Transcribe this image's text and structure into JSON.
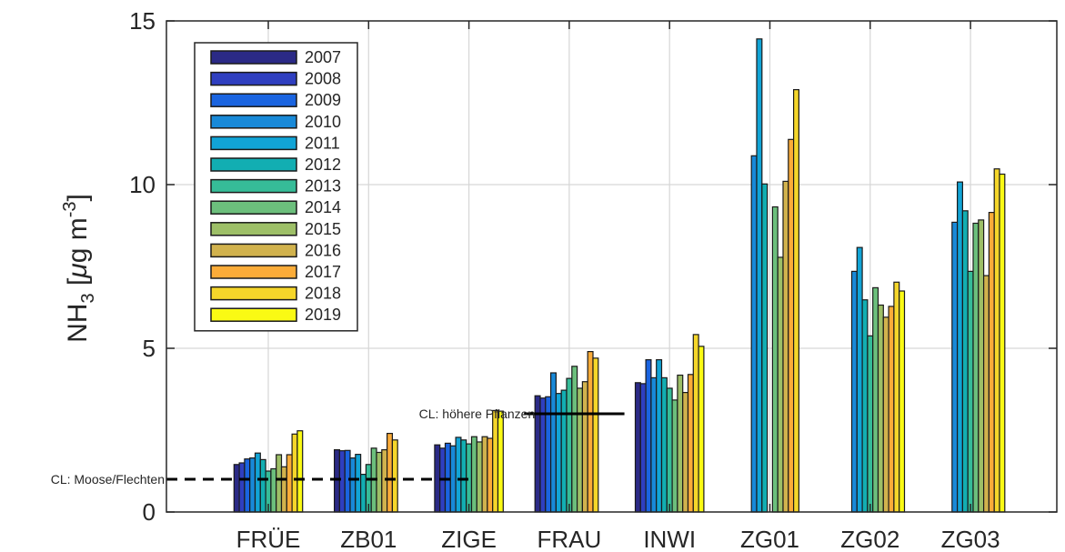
{
  "chart_data": {
    "type": "bar",
    "categories": [
      "FRÜE",
      "ZB01",
      "ZIGE",
      "FRAU",
      "INWI",
      "ZG01",
      "ZG02",
      "ZG03"
    ],
    "ylabel_main": "NH",
    "ylabel_sub": "3",
    "ylabel_unit_prefix": " [",
    "ylabel_mu": "μ",
    "ylabel_unit_mid": "g m",
    "ylabel_sup": "-3",
    "ylabel_unit_suffix": "]",
    "ylim": [
      0,
      15
    ],
    "yticks": [
      0,
      5,
      10,
      15
    ],
    "grid": true,
    "legend_position": "top-left",
    "series": [
      {
        "name": "2007",
        "color": "#2b2a86",
        "values": [
          1.45,
          1.9,
          2.05,
          3.55,
          3.95,
          null,
          null,
          null
        ]
      },
      {
        "name": "2008",
        "color": "#2f3fc0",
        "values": [
          1.5,
          1.87,
          1.95,
          3.48,
          3.92,
          null,
          null,
          null
        ]
      },
      {
        "name": "2009",
        "color": "#1a64e0",
        "values": [
          1.62,
          1.88,
          2.1,
          3.52,
          4.65,
          null,
          null,
          null
        ]
      },
      {
        "name": "2010",
        "color": "#1889d8",
        "values": [
          1.65,
          1.65,
          2.02,
          4.25,
          4.1,
          10.88,
          7.35,
          8.85
        ]
      },
      {
        "name": "2011",
        "color": "#11a4d6",
        "values": [
          1.8,
          1.76,
          2.28,
          3.62,
          4.65,
          14.45,
          8.08,
          10.08
        ]
      },
      {
        "name": "2012",
        "color": "#12aeb2",
        "values": [
          1.6,
          1.15,
          2.2,
          3.72,
          4.1,
          10.02,
          6.48,
          9.2
        ]
      },
      {
        "name": "2013",
        "color": "#36bc98",
        "values": [
          1.25,
          1.45,
          2.08,
          4.08,
          3.78,
          null,
          5.38,
          7.35
        ]
      },
      {
        "name": "2014",
        "color": "#6cbf7c",
        "values": [
          1.32,
          1.95,
          2.3,
          4.45,
          3.42,
          9.32,
          6.85,
          8.82
        ]
      },
      {
        "name": "2015",
        "color": "#9dbf67",
        "values": [
          1.75,
          1.82,
          2.14,
          3.78,
          4.18,
          7.78,
          6.32,
          8.92
        ]
      },
      {
        "name": "2016",
        "color": "#d1b24d",
        "values": [
          1.38,
          1.9,
          2.3,
          3.98,
          3.65,
          10.1,
          5.95,
          7.22
        ]
      },
      {
        "name": "2017",
        "color": "#fbac39",
        "values": [
          1.75,
          2.4,
          2.25,
          4.9,
          4.2,
          11.38,
          6.28,
          9.15
        ]
      },
      {
        "name": "2018",
        "color": "#f5d62a",
        "values": [
          2.38,
          2.2,
          3.1,
          4.7,
          5.42,
          12.9,
          7.02,
          10.48
        ]
      },
      {
        "name": "2019",
        "color": "#fafa14",
        "values": [
          2.48,
          null,
          3.08,
          null,
          5.06,
          null,
          6.75,
          10.32
        ]
      }
    ],
    "reference_lines": [
      {
        "label": "CL: Moose/Flechten",
        "value": 1,
        "style": "dashed",
        "x_from_category": 0,
        "x_to_category": 2
      },
      {
        "label": "CL: höhere Pflanzen",
        "value": 3,
        "style": "solid",
        "x_from_category": 2.55,
        "x_to_category": 3.55
      }
    ]
  }
}
